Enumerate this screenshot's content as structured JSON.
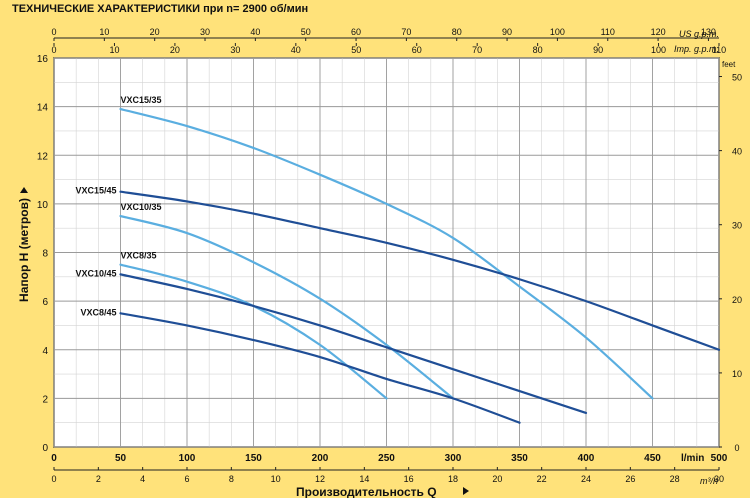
{
  "chart_data": {
    "type": "line",
    "title": "ТЕХНИЧЕСКИЕ ХАРАКТЕРИСТИКИ при n= 2900 об/мин",
    "ylabel": "Напор H  (метров)",
    "xlabel": "Производительность Q",
    "grid": true,
    "x_axis": {
      "unit": "l/min",
      "range": [
        0,
        500
      ],
      "ticks": [
        0,
        50,
        100,
        150,
        200,
        250,
        300,
        350,
        400,
        450,
        500
      ]
    },
    "x_axis_m3h": {
      "unit": "m³/h",
      "range": [
        0,
        30
      ],
      "ticks": [
        0,
        2,
        4,
        6,
        8,
        10,
        12,
        14,
        16,
        18,
        20,
        22,
        24,
        26,
        28,
        30
      ]
    },
    "x_axis_us_gpm": {
      "unit": "US g.p.m.",
      "range": [
        0,
        132.1
      ],
      "ticks": [
        0,
        10,
        20,
        30,
        40,
        50,
        60,
        70,
        80,
        90,
        100,
        110,
        120,
        130
      ]
    },
    "x_axis_imp_gpm": {
      "unit": "Imp. g.p.m.",
      "range": [
        0,
        110
      ],
      "ticks": [
        0,
        10,
        20,
        30,
        40,
        50,
        60,
        70,
        80,
        90,
        100,
        110
      ]
    },
    "y_axis": {
      "unit": "m",
      "range": [
        0,
        16
      ],
      "ticks": [
        0,
        2,
        4,
        6,
        8,
        10,
        12,
        14,
        16
      ]
    },
    "y_axis_right": {
      "unit": "feet",
      "range": [
        0,
        52.5
      ],
      "ticks": [
        0,
        10,
        20,
        30,
        40,
        50
      ]
    },
    "series": [
      {
        "name": "VXC15/35",
        "color": "#5aaee0",
        "x": [
          50,
          100,
          150,
          200,
          250,
          300,
          350,
          400,
          450
        ],
        "y": [
          13.9,
          13.2,
          12.3,
          11.2,
          10.0,
          8.6,
          6.6,
          4.5,
          2.0
        ]
      },
      {
        "name": "VXC15/45",
        "color": "#1f4e96",
        "x": [
          50,
          100,
          150,
          200,
          250,
          300,
          350,
          400,
          450,
          500
        ],
        "y": [
          10.5,
          10.1,
          9.6,
          9.0,
          8.4,
          7.7,
          6.9,
          6.0,
          5.0,
          4.0
        ]
      },
      {
        "name": "VXC10/35",
        "color": "#5aaee0",
        "x": [
          50,
          100,
          150,
          200,
          250,
          300
        ],
        "y": [
          9.5,
          8.8,
          7.6,
          6.1,
          4.2,
          2.0
        ]
      },
      {
        "name": "VXC8/35",
        "color": "#5aaee0",
        "x": [
          50,
          100,
          150,
          200,
          250
        ],
        "y": [
          7.5,
          6.8,
          5.8,
          4.2,
          2.0
        ]
      },
      {
        "name": "VXC10/45",
        "color": "#1f4e96",
        "x": [
          50,
          100,
          150,
          200,
          250,
          300,
          350,
          400
        ],
        "y": [
          7.1,
          6.5,
          5.8,
          5.0,
          4.1,
          3.2,
          2.3,
          1.4
        ]
      },
      {
        "name": "VXC8/45",
        "color": "#1f4e96",
        "x": [
          50,
          100,
          150,
          200,
          250,
          300,
          350
        ],
        "y": [
          5.5,
          5.0,
          4.4,
          3.7,
          2.8,
          2.0,
          1.0
        ]
      }
    ]
  }
}
